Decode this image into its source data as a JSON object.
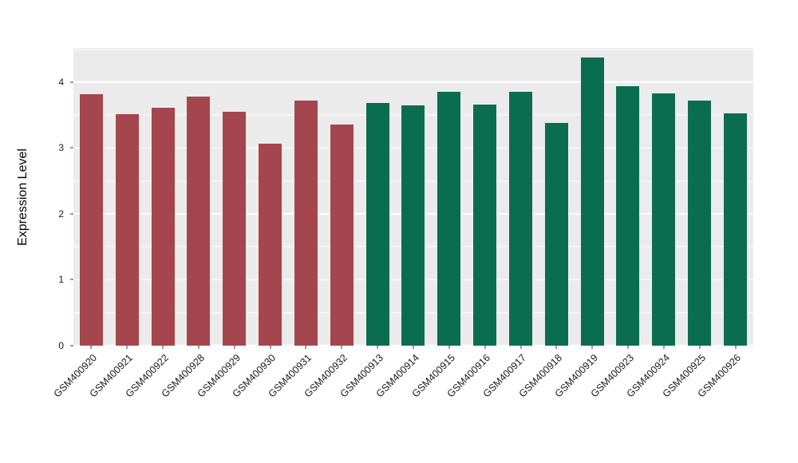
{
  "chart_data": {
    "type": "bar",
    "title": "",
    "xlabel": "",
    "ylabel": "Expression Level",
    "ylim": [
      0,
      4.52
    ],
    "yticks": [
      0,
      1,
      2,
      3,
      4
    ],
    "yticks_minor": [
      0.5,
      1.5,
      2.5,
      3.5,
      4.5
    ],
    "grid": "on",
    "legend_position": "none",
    "panel_bg": "#EBEBEB",
    "grid_color": "#FFFFFF",
    "palette": [
      "#A5464E",
      "#0B6D4F"
    ],
    "categories": [
      "GSM400920",
      "GSM400921",
      "GSM400922",
      "GSM400928",
      "GSM400929",
      "GSM400930",
      "GSM400931",
      "GSM400932",
      "GSM400913",
      "GSM400914",
      "GSM400915",
      "GSM400916",
      "GSM400917",
      "GSM400918",
      "GSM400919",
      "GSM400923",
      "GSM400924",
      "GSM400925",
      "GSM400926"
    ],
    "values": [
      3.82,
      3.51,
      3.61,
      3.78,
      3.55,
      3.06,
      3.72,
      3.36,
      3.68,
      3.65,
      3.85,
      3.66,
      3.85,
      3.38,
      4.37,
      3.94,
      3.83,
      3.72,
      3.53
    ],
    "group_index": [
      0,
      0,
      0,
      0,
      0,
      0,
      0,
      0,
      1,
      1,
      1,
      1,
      1,
      1,
      1,
      1,
      1,
      1,
      1
    ]
  }
}
